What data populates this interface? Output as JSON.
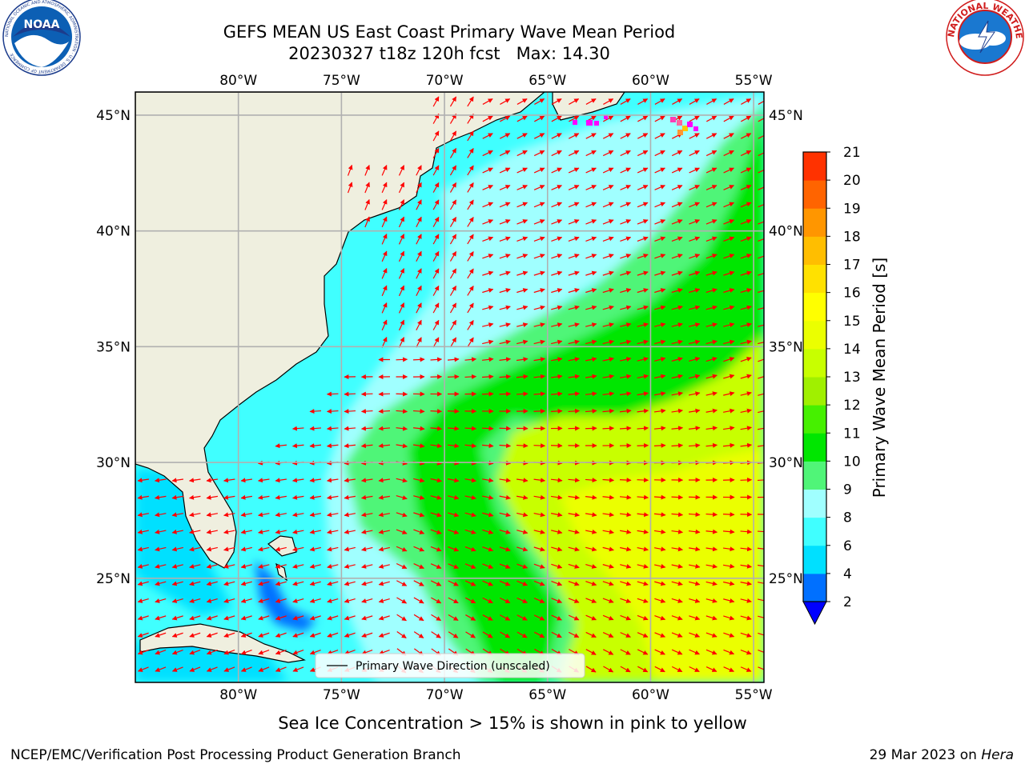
{
  "title": {
    "line1": "GEFS MEAN US East Coast Primary Wave Mean Period",
    "line2": "20230327 t18z 120h fcst   Max: 14.30"
  },
  "logos": {
    "left": "NOAA",
    "left_ring": "NATIONAL OCEANIC AND ATMOSPHERIC ADMINISTRATION · U.S. DEPARTMENT OF COMMERCE",
    "right_ring": "NATIONAL WEATHER SERVICE"
  },
  "map": {
    "lon_range": [
      -85,
      -54.5
    ],
    "lat_range": [
      20.5,
      46
    ],
    "lon_ticks": [
      {
        "value": -80,
        "label": "80°W"
      },
      {
        "value": -75,
        "label": "75°W"
      },
      {
        "value": -70,
        "label": "70°W"
      },
      {
        "value": -65,
        "label": "65°W"
      },
      {
        "value": -60,
        "label": "60°W"
      },
      {
        "value": -55,
        "label": "55°W"
      }
    ],
    "lat_ticks": [
      {
        "value": 45,
        "label": "45°N"
      },
      {
        "value": 40,
        "label": "40°N"
      },
      {
        "value": 35,
        "label": "35°N"
      },
      {
        "value": 30,
        "label": "30°N"
      },
      {
        "value": 25,
        "label": "25°N"
      }
    ],
    "grid": true,
    "legend_label": "Primary Wave Direction (unscaled)",
    "legend_position": "bottom-center",
    "colors": {
      "land": "#efefdf",
      "arrow": "#ff0000",
      "grid": "#b0b0b0",
      "coast": "#000000"
    }
  },
  "colorbar": {
    "label": "Primary Wave Mean Period [s]",
    "ticks": [
      "2",
      "4",
      "6",
      "8",
      "9",
      "10",
      "11",
      "12",
      "13",
      "14",
      "15",
      "16",
      "17",
      "18",
      "19",
      "20",
      "21"
    ],
    "colors": [
      "#0070ff",
      "#00e0ff",
      "#40ffff",
      "#a0ffff",
      "#50f578",
      "#00e600",
      "#46f000",
      "#a0f000",
      "#c8ff00",
      "#ebff00",
      "#ffff00",
      "#ffe100",
      "#ffbe00",
      "#ff9600",
      "#ff6400",
      "#ff3200"
    ],
    "extend_color": "#0000ff"
  },
  "footer": {
    "note": "Sea Ice Concentration > 15% is shown in pink to yellow",
    "left": "NCEP/EMC/Verification Post Processing Product Generation Branch",
    "right_prefix": "29 Mar 2023 on ",
    "right_host": "Hera"
  }
}
